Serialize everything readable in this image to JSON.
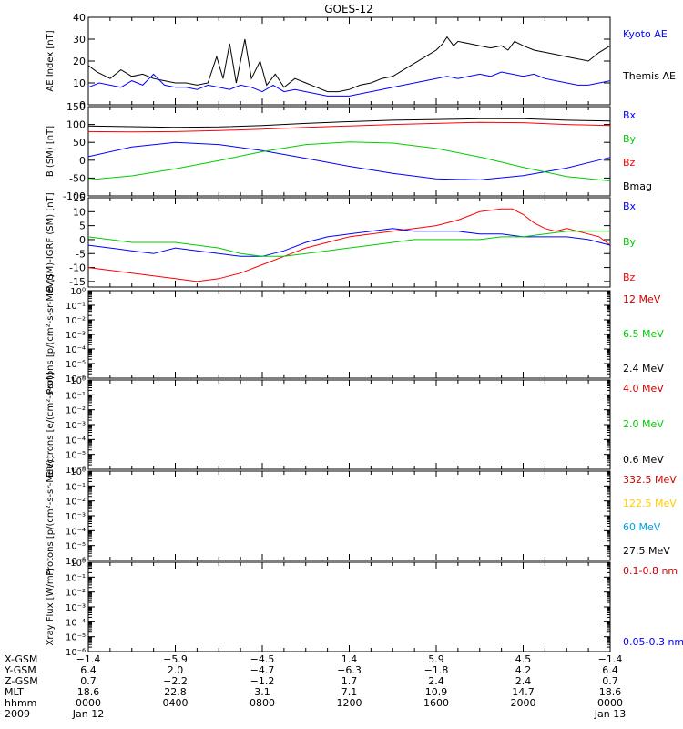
{
  "chart_data": {
    "type": "line",
    "title": "GOES-12",
    "x_range": [
      "0000",
      "2400"
    ],
    "panels": [
      {
        "id": "ae",
        "ylabel": "AE Index [nT]",
        "ylim": [
          0,
          40
        ],
        "yticks": [
          0,
          10,
          20,
          30,
          40
        ],
        "ytick_labels": [
          "0",
          "10",
          "20",
          "30",
          "40"
        ],
        "scale": "linear",
        "legend": [
          {
            "label": "Kyoto AE",
            "color": "#0000ff"
          },
          {
            "label": "Themis AE",
            "color": "#000000"
          }
        ],
        "series": [
          {
            "name": "Themis AE",
            "color": "#000000",
            "x": [
              0.0,
              0.4,
              1.0,
              1.5,
              2.0,
              2.5,
              3.0,
              3.5,
              4.0,
              4.5,
              5.0,
              5.5,
              5.9,
              6.2,
              6.5,
              6.8,
              7.2,
              7.5,
              7.9,
              8.2,
              8.6,
              9.0,
              9.5,
              10.0,
              10.5,
              11.0,
              11.5,
              12.0,
              12.5,
              13.0,
              13.5,
              14.0,
              14.5,
              15.0,
              15.5,
              16.0,
              16.3,
              16.5,
              16.8,
              17.0,
              17.5,
              18.0,
              18.5,
              19.0,
              19.3,
              19.6,
              20.0,
              20.5,
              21.0,
              21.5,
              22.0,
              22.5,
              23.0,
              23.5,
              24.0
            ],
            "y": [
              18,
              15,
              12,
              16,
              13,
              14,
              12,
              11,
              10,
              10,
              9,
              10,
              22,
              12,
              28,
              10,
              30,
              12,
              20,
              9,
              14,
              8,
              12,
              10,
              8,
              6,
              6,
              7,
              9,
              10,
              12,
              13,
              16,
              19,
              22,
              25,
              28,
              31,
              27,
              29,
              28,
              27,
              26,
              27,
              25,
              29,
              27,
              25,
              24,
              23,
              22,
              21,
              20,
              24,
              27
            ]
          },
          {
            "name": "Kyoto AE",
            "color": "#0000ff",
            "x": [
              0.0,
              0.5,
              1.0,
              1.5,
              2.0,
              2.5,
              3.0,
              3.5,
              4.0,
              4.5,
              5.0,
              5.5,
              6.0,
              6.5,
              7.0,
              7.5,
              8.0,
              8.5,
              9.0,
              9.5,
              10.0,
              10.5,
              11.0,
              11.5,
              12.0,
              12.5,
              13.0,
              13.5,
              14.0,
              14.5,
              15.0,
              15.5,
              16.0,
              16.5,
              17.0,
              17.5,
              18.0,
              18.5,
              19.0,
              19.5,
              20.0,
              20.5,
              21.0,
              21.5,
              22.0,
              22.5,
              23.0,
              23.5,
              24.0
            ],
            "y": [
              8,
              10,
              9,
              8,
              11,
              9,
              14,
              9,
              8,
              8,
              7,
              9,
              8,
              7,
              9,
              8,
              6,
              9,
              6,
              7,
              6,
              5,
              4,
              4,
              4,
              5,
              6,
              7,
              8,
              9,
              10,
              11,
              12,
              13,
              12,
              13,
              14,
              13,
              15,
              14,
              13,
              14,
              12,
              11,
              10,
              9,
              9,
              10,
              11
            ]
          }
        ]
      },
      {
        "id": "bsm",
        "ylabel": "B (SM) [nT]",
        "ylim": [
          -100,
          150
        ],
        "yticks": [
          -100,
          -50,
          0,
          50,
          100,
          150
        ],
        "ytick_labels": [
          "-100",
          "-50",
          "0",
          "50",
          "100",
          "150"
        ],
        "scale": "linear",
        "legend": [
          {
            "label": "Bx",
            "color": "#0000ff"
          },
          {
            "label": "By",
            "color": "#00cc00"
          },
          {
            "label": "Bz",
            "color": "#ff0000"
          },
          {
            "label": "Bmag",
            "color": "#000000"
          }
        ],
        "series": [
          {
            "name": "Bmag",
            "color": "#000000",
            "x": [
              0,
              2,
              4,
              6,
              8,
              10,
              12,
              14,
              16,
              18,
              20,
              22,
              24
            ],
            "y": [
              96,
              94,
              92,
              93,
              97,
              103,
              108,
              112,
              114,
              116,
              116,
              112,
              110
            ]
          },
          {
            "name": "Bz",
            "color": "#ff0000",
            "x": [
              0,
              2,
              4,
              6,
              8,
              10,
              12,
              14,
              16,
              18,
              20,
              22,
              24
            ],
            "y": [
              80,
              79,
              80,
              83,
              87,
              92,
              96,
              100,
              103,
              106,
              105,
              100,
              97
            ]
          },
          {
            "name": "Bx",
            "color": "#0000ff",
            "x": [
              0,
              2,
              4,
              6,
              8,
              10,
              12,
              14,
              16,
              18,
              20,
              22,
              24
            ],
            "y": [
              10,
              37,
              50,
              44,
              27,
              5,
              -17,
              -37,
              -52,
              -55,
              -43,
              -22,
              8
            ]
          },
          {
            "name": "By",
            "color": "#00cc00",
            "x": [
              0,
              2,
              4,
              6,
              8,
              10,
              12,
              14,
              16,
              18,
              20,
              22,
              24
            ],
            "y": [
              -55,
              -44,
              -24,
              -1,
              24,
              44,
              51,
              48,
              33,
              9,
              -20,
              -46,
              -58
            ]
          }
        ]
      },
      {
        "id": "bsm_igrf",
        "ylabel": "B (SM)-IGRF (SM) [nT]",
        "ylim": [
          -17,
          15
        ],
        "yticks": [
          -15,
          -10,
          -5,
          0,
          5,
          10,
          15
        ],
        "ytick_labels": [
          "-15",
          "-10",
          "-5",
          "0",
          "5",
          "10",
          "15"
        ],
        "scale": "linear",
        "legend": [
          {
            "label": "Bx",
            "color": "#0000ff"
          },
          {
            "label": "By",
            "color": "#00cc00"
          },
          {
            "label": "Bz",
            "color": "#ff0000"
          }
        ],
        "series": [
          {
            "name": "Bz",
            "color": "#ff0000",
            "x": [
              0,
              1,
              2,
              3,
              4,
              5,
              6,
              7,
              8,
              9,
              10,
              11,
              12,
              13,
              14,
              15,
              16,
              17,
              18,
              19,
              19.5,
              20,
              20.5,
              21,
              21.5,
              22,
              22.5,
              23,
              23.5,
              24
            ],
            "y": [
              -10,
              -11,
              -12,
              -13,
              -14,
              -15,
              -14,
              -12,
              -9,
              -6,
              -3,
              -1,
              1,
              2,
              3,
              4,
              5,
              7,
              10,
              11,
              11,
              9,
              6,
              4,
              3,
              4,
              3,
              2,
              1,
              -2
            ]
          },
          {
            "name": "Bx",
            "color": "#0000ff",
            "x": [
              0,
              1,
              2,
              3,
              4,
              5,
              6,
              7,
              8,
              9,
              10,
              11,
              12,
              13,
              14,
              15,
              16,
              17,
              18,
              19,
              20,
              21,
              22,
              23,
              24
            ],
            "y": [
              -2,
              -3,
              -4,
              -5,
              -3,
              -4,
              -5,
              -6,
              -6,
              -4,
              -1,
              1,
              2,
              3,
              4,
              3,
              3,
              3,
              2,
              2,
              1,
              1,
              1,
              0,
              -2
            ]
          },
          {
            "name": "By",
            "color": "#00cc00",
            "x": [
              0,
              1,
              2,
              3,
              4,
              5,
              6,
              7,
              8,
              9,
              10,
              11,
              12,
              13,
              14,
              15,
              16,
              17,
              18,
              19,
              20,
              21,
              22,
              23,
              24
            ],
            "y": [
              1,
              0,
              -1,
              -1,
              -1,
              -2,
              -3,
              -5,
              -6,
              -6,
              -5,
              -4,
              -3,
              -2,
              -1,
              0,
              0,
              0,
              0,
              1,
              1,
              2,
              3,
              3,
              3
            ]
          }
        ]
      },
      {
        "id": "protons_low",
        "ylabel": "Protons [p/(cm²-s-sr-MeV)]",
        "ylim_log10": [
          -6,
          0
        ],
        "ytick_labels": [
          "10⁻⁶",
          "10⁻⁵",
          "10⁻⁴",
          "10⁻³",
          "10⁻²",
          "10⁻¹",
          "10⁰"
        ],
        "scale": "log",
        "legend": [
          {
            "label": "12 MeV",
            "color": "#cc0000"
          },
          {
            "label": "6.5 MeV",
            "color": "#00cc00"
          },
          {
            "label": "2.4 MeV",
            "color": "#000000"
          }
        ],
        "series": []
      },
      {
        "id": "electrons",
        "ylabel": "Electrons [e/(cm²-s-sr)]",
        "ylim_log10": [
          -6,
          0
        ],
        "ytick_labels": [
          "10⁻⁶",
          "10⁻⁵",
          "10⁻⁴",
          "10⁻³",
          "10⁻²",
          "10⁻¹",
          "10⁰"
        ],
        "scale": "log",
        "legend": [
          {
            "label": "4.0 MeV",
            "color": "#cc0000"
          },
          {
            "label": "2.0 MeV",
            "color": "#00cc00"
          },
          {
            "label": "0.6 MeV",
            "color": "#000000"
          }
        ],
        "series": []
      },
      {
        "id": "protons_high",
        "ylabel": "Protons [p/(cm²-s-sr-MeV)]",
        "ylim_log10": [
          -6,
          0
        ],
        "ytick_labels": [
          "10⁻⁶",
          "10⁻⁵",
          "10⁻⁴",
          "10⁻³",
          "10⁻²",
          "10⁻¹",
          "10⁰"
        ],
        "scale": "log",
        "legend": [
          {
            "label": "332.5 MeV",
            "color": "#cc0000"
          },
          {
            "label": "122.5 MeV",
            "color": "#ffcc00"
          },
          {
            "label": "60 MeV",
            "color": "#00a0e0"
          },
          {
            "label": "27.5 MeV",
            "color": "#000000"
          }
        ],
        "series": []
      },
      {
        "id": "xray",
        "ylabel": "Xray Flux [W/m²]",
        "ylim_log10": [
          -6,
          0
        ],
        "ytick_labels": [
          "10⁻⁶",
          "10⁻⁵",
          "10⁻⁴",
          "10⁻³",
          "10⁻²",
          "10⁻¹",
          "10⁰"
        ],
        "scale": "log",
        "legend": [
          {
            "label": "0.1-0.8 nm",
            "color": "#cc0000"
          },
          {
            "label": "0.05-0.3 nm",
            "color": "#0000ff"
          }
        ],
        "series": []
      }
    ],
    "x_axis_table": {
      "row_labels": [
        "X-GSM",
        "Y-GSM",
        "Z-GSM",
        "MLT",
        "hhmm",
        "2009"
      ],
      "columns": [
        {
          "hour": 0,
          "values": [
            "−1.4",
            "6.4",
            "0.7",
            "18.6",
            "0000",
            "Jan 12"
          ]
        },
        {
          "hour": 4,
          "values": [
            "−5.9",
            "2.0",
            "−2.2",
            "22.8",
            "0400",
            ""
          ]
        },
        {
          "hour": 8,
          "values": [
            "−4.5",
            "−4.7",
            "−1.2",
            "3.1",
            "0800",
            ""
          ]
        },
        {
          "hour": 12,
          "values": [
            "1.4",
            "−6.3",
            "1.7",
            "7.1",
            "1200",
            ""
          ]
        },
        {
          "hour": 16,
          "values": [
            "5.9",
            "−1.8",
            "2.4",
            "10.9",
            "1600",
            ""
          ]
        },
        {
          "hour": 20,
          "values": [
            "4.5",
            "4.2",
            "2.4",
            "14.7",
            "2000",
            ""
          ]
        },
        {
          "hour": 24,
          "values": [
            "−1.4",
            "6.4",
            "0.7",
            "18.6",
            "0000",
            "Jan 13"
          ]
        }
      ]
    }
  }
}
